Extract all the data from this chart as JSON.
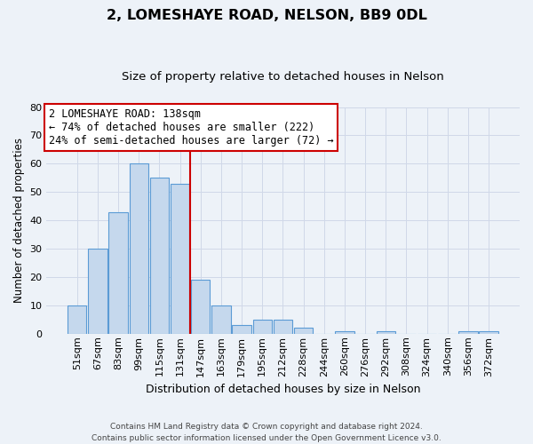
{
  "title": "2, LOMESHAYE ROAD, NELSON, BB9 0DL",
  "subtitle": "Size of property relative to detached houses in Nelson",
  "xlabel": "Distribution of detached houses by size in Nelson",
  "ylabel": "Number of detached properties",
  "bar_labels": [
    "51sqm",
    "67sqm",
    "83sqm",
    "99sqm",
    "115sqm",
    "131sqm",
    "147sqm",
    "163sqm",
    "179sqm",
    "195sqm",
    "212sqm",
    "228sqm",
    "244sqm",
    "260sqm",
    "276sqm",
    "292sqm",
    "308sqm",
    "324sqm",
    "340sqm",
    "356sqm",
    "372sqm"
  ],
  "bar_values": [
    10,
    30,
    43,
    60,
    55,
    53,
    19,
    10,
    3,
    5,
    5,
    2,
    0,
    1,
    0,
    1,
    0,
    0,
    0,
    1,
    1
  ],
  "bar_color": "#c5d8ed",
  "bar_edge_color": "#5b9bd5",
  "vline_color": "#cc0000",
  "annotation_text": "2 LOMESHAYE ROAD: 138sqm\n← 74% of detached houses are smaller (222)\n24% of semi-detached houses are larger (72) →",
  "annotation_box_facecolor": "#ffffff",
  "annotation_box_edgecolor": "#cc0000",
  "ylim": [
    0,
    80
  ],
  "yticks": [
    0,
    10,
    20,
    30,
    40,
    50,
    60,
    70,
    80
  ],
  "grid_color": "#d0d8e8",
  "bg_color": "#edf2f8",
  "footer": "Contains HM Land Registry data © Crown copyright and database right 2024.\nContains public sector information licensed under the Open Government Licence v3.0.",
  "title_fontsize": 11.5,
  "subtitle_fontsize": 9.5,
  "xlabel_fontsize": 9,
  "ylabel_fontsize": 8.5,
  "tick_fontsize": 8,
  "annotation_fontsize": 8.5,
  "footer_fontsize": 6.5
}
